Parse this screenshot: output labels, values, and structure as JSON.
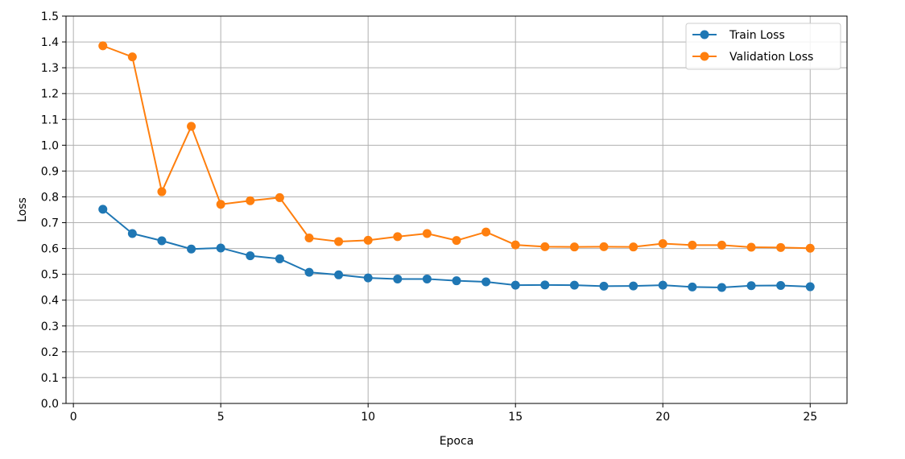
{
  "chart_data": {
    "type": "line",
    "title": "",
    "xlabel": "Epoca",
    "ylabel": "Loss",
    "xlim": [
      -0.25,
      26.25
    ],
    "ylim": [
      0.0,
      1.5
    ],
    "xticks": [
      0,
      5,
      10,
      15,
      20,
      25
    ],
    "yticks": [
      0.0,
      0.1,
      0.2,
      0.3,
      0.4,
      0.5,
      0.6,
      0.7,
      0.8,
      0.9,
      1.0,
      1.1,
      1.2,
      1.3,
      1.4,
      1.5
    ],
    "xtick_labels": [
      "0",
      "5",
      "10",
      "15",
      "20",
      "25"
    ],
    "ytick_labels": [
      "0.0",
      "0.1",
      "0.2",
      "0.3",
      "0.4",
      "0.5",
      "0.6",
      "0.7",
      "0.8",
      "0.9",
      "1.0",
      "1.1",
      "1.2",
      "1.3",
      "1.4",
      "1.5"
    ],
    "grid": true,
    "legend_position": "top-right",
    "x": [
      1,
      2,
      3,
      4,
      5,
      6,
      7,
      8,
      9,
      10,
      11,
      12,
      13,
      14,
      15,
      16,
      17,
      18,
      19,
      20,
      21,
      22,
      23,
      24,
      25
    ],
    "series": [
      {
        "name": "Train Loss",
        "color": "#1f77b4",
        "marker": "circle",
        "values": [
          0.752,
          0.658,
          0.63,
          0.598,
          0.602,
          0.572,
          0.56,
          0.508,
          0.498,
          0.486,
          0.482,
          0.482,
          0.475,
          0.471,
          0.458,
          0.459,
          0.458,
          0.454,
          0.455,
          0.458,
          0.451,
          0.449,
          0.456,
          0.457,
          0.452
        ]
      },
      {
        "name": "Validation Loss",
        "color": "#ff7f0e",
        "marker": "circle",
        "values": [
          1.385,
          1.342,
          0.82,
          1.073,
          0.771,
          0.785,
          0.797,
          0.641,
          0.627,
          0.632,
          0.646,
          0.658,
          0.631,
          0.664,
          0.614,
          0.607,
          0.606,
          0.607,
          0.606,
          0.619,
          0.613,
          0.613,
          0.605,
          0.604,
          0.601
        ]
      }
    ]
  }
}
